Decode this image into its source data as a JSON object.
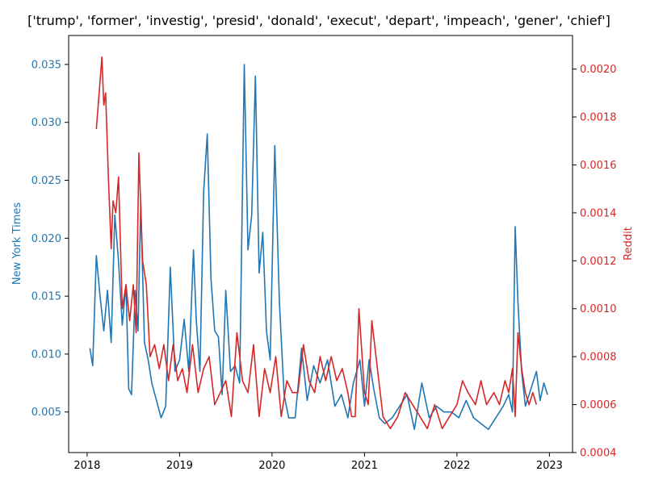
{
  "chart_data": {
    "type": "line",
    "title": "['trump', 'former', 'investig', 'presid', 'donald', 'execut', 'depart', 'impeach', 'gener', 'chief']",
    "xlabel": "",
    "x_ticks": [
      "2018",
      "2019",
      "2020",
      "2021",
      "2022",
      "2023"
    ],
    "x_range": [
      2017.8,
      2023.25
    ],
    "grid": false,
    "legend": "none",
    "left_axis": {
      "label": "New York Times",
      "color": "#1f77b4",
      "ylim": [
        0.0015,
        0.0375
      ],
      "ticks": [
        "0.005",
        "0.010",
        "0.015",
        "0.020",
        "0.025",
        "0.030",
        "0.035"
      ]
    },
    "right_axis": {
      "label": "Reddit",
      "color": "#d62728",
      "ylim": [
        0.0004,
        0.00214
      ],
      "ticks": [
        "0.0004",
        "0.0006",
        "0.0008",
        "0.0010",
        "0.0012",
        "0.0014",
        "0.0016",
        "0.0018",
        "0.0020"
      ]
    },
    "series": [
      {
        "axis": "left",
        "color": "#1f77b4",
        "x": [
          2018.03,
          2018.06,
          2018.1,
          2018.14,
          2018.18,
          2018.22,
          2018.26,
          2018.3,
          2018.34,
          2018.38,
          2018.42,
          2018.45,
          2018.48,
          2018.52,
          2018.55,
          2018.58,
          2018.62,
          2018.66,
          2018.7,
          2018.75,
          2018.8,
          2018.85,
          2018.9,
          2018.95,
          2019.0,
          2019.05,
          2019.1,
          2019.15,
          2019.18,
          2019.22,
          2019.26,
          2019.3,
          2019.34,
          2019.38,
          2019.42,
          2019.46,
          2019.5,
          2019.55,
          2019.6,
          2019.65,
          2019.7,
          2019.74,
          2019.78,
          2019.82,
          2019.86,
          2019.9,
          2019.94,
          2019.98,
          2020.03,
          2020.08,
          2020.13,
          2020.18,
          2020.25,
          2020.32,
          2020.38,
          2020.45,
          2020.52,
          2020.6,
          2020.68,
          2020.75,
          2020.82,
          2020.88,
          2020.95,
          2021.0,
          2021.05,
          2021.1,
          2021.16,
          2021.22,
          2021.3,
          2021.38,
          2021.46,
          2021.54,
          2021.62,
          2021.7,
          2021.78,
          2021.86,
          2021.94,
          2022.02,
          2022.1,
          2022.18,
          2022.26,
          2022.34,
          2022.42,
          2022.5,
          2022.56,
          2022.6,
          2022.63,
          2022.66,
          2022.7,
          2022.74,
          2022.78,
          2022.82,
          2022.86,
          2022.9,
          2022.94,
          2022.98
        ],
        "values": [
          0.0105,
          0.009,
          0.0185,
          0.015,
          0.012,
          0.0155,
          0.011,
          0.022,
          0.018,
          0.0125,
          0.016,
          0.007,
          0.0065,
          0.0155,
          0.012,
          0.023,
          0.011,
          0.0095,
          0.0075,
          0.006,
          0.0045,
          0.0055,
          0.0175,
          0.0085,
          0.0095,
          0.013,
          0.0085,
          0.019,
          0.013,
          0.0085,
          0.024,
          0.029,
          0.0165,
          0.012,
          0.0115,
          0.0065,
          0.0155,
          0.0085,
          0.009,
          0.0075,
          0.035,
          0.019,
          0.022,
          0.034,
          0.017,
          0.0205,
          0.012,
          0.0095,
          0.028,
          0.0145,
          0.0065,
          0.0045,
          0.0045,
          0.0105,
          0.006,
          0.009,
          0.0075,
          0.0095,
          0.0055,
          0.0065,
          0.0045,
          0.0075,
          0.0095,
          0.0055,
          0.0095,
          0.007,
          0.0045,
          0.004,
          0.0045,
          0.0055,
          0.0065,
          0.0035,
          0.0075,
          0.0045,
          0.0055,
          0.005,
          0.005,
          0.0045,
          0.006,
          0.0045,
          0.004,
          0.0035,
          0.0045,
          0.0055,
          0.0065,
          0.005,
          0.021,
          0.0145,
          0.0085,
          0.0055,
          0.0065,
          0.0075,
          0.0085,
          0.006,
          0.0075,
          0.0065
        ]
      },
      {
        "axis": "right",
        "color": "#d62728",
        "x": [
          2018.1,
          2018.13,
          2018.16,
          2018.18,
          2018.2,
          2018.23,
          2018.26,
          2018.28,
          2018.31,
          2018.34,
          2018.38,
          2018.42,
          2018.46,
          2018.5,
          2018.53,
          2018.56,
          2018.6,
          2018.64,
          2018.68,
          2018.73,
          2018.78,
          2018.83,
          2018.88,
          2018.93,
          2018.98,
          2019.03,
          2019.08,
          2019.14,
          2019.2,
          2019.26,
          2019.32,
          2019.38,
          2019.44,
          2019.5,
          2019.56,
          2019.62,
          2019.68,
          2019.74,
          2019.8,
          2019.86,
          2019.92,
          2019.98,
          2020.04,
          2020.1,
          2020.16,
          2020.22,
          2020.28,
          2020.34,
          2020.4,
          2020.46,
          2020.52,
          2020.58,
          2020.64,
          2020.7,
          2020.76,
          2020.82,
          2020.86,
          2020.9,
          2020.94,
          2021.0,
          2021.04,
          2021.08,
          2021.14,
          2021.2,
          2021.28,
          2021.36,
          2021.44,
          2021.52,
          2021.6,
          2021.68,
          2021.76,
          2021.84,
          2021.92,
          2022.0,
          2022.06,
          2022.12,
          2022.2,
          2022.26,
          2022.32,
          2022.4,
          2022.46,
          2022.52,
          2022.56,
          2022.6,
          2022.63,
          2022.66,
          2022.7,
          2022.74,
          2022.78,
          2022.82,
          2022.86
        ],
        "values": [
          0.00175,
          0.0019,
          0.00205,
          0.00185,
          0.0019,
          0.00155,
          0.00125,
          0.00145,
          0.0014,
          0.00155,
          0.001,
          0.0011,
          0.00095,
          0.0011,
          0.0009,
          0.00165,
          0.0012,
          0.0011,
          0.0008,
          0.00085,
          0.00075,
          0.00085,
          0.0007,
          0.00085,
          0.0007,
          0.00075,
          0.00065,
          0.00085,
          0.00065,
          0.00075,
          0.0008,
          0.0006,
          0.00065,
          0.0007,
          0.00055,
          0.0009,
          0.0007,
          0.00065,
          0.00085,
          0.00055,
          0.00075,
          0.00065,
          0.0008,
          0.00055,
          0.0007,
          0.00065,
          0.00065,
          0.00085,
          0.0007,
          0.00065,
          0.0008,
          0.0007,
          0.0008,
          0.0007,
          0.00075,
          0.00065,
          0.00055,
          0.00055,
          0.001,
          0.00065,
          0.0006,
          0.00095,
          0.00075,
          0.00055,
          0.0005,
          0.00055,
          0.00065,
          0.0006,
          0.00055,
          0.0005,
          0.0006,
          0.0005,
          0.00055,
          0.0006,
          0.0007,
          0.00065,
          0.0006,
          0.0007,
          0.0006,
          0.00065,
          0.0006,
          0.0007,
          0.00065,
          0.00075,
          0.00055,
          0.0009,
          0.00075,
          0.00065,
          0.0006,
          0.00065,
          0.0006
        ]
      }
    ]
  }
}
